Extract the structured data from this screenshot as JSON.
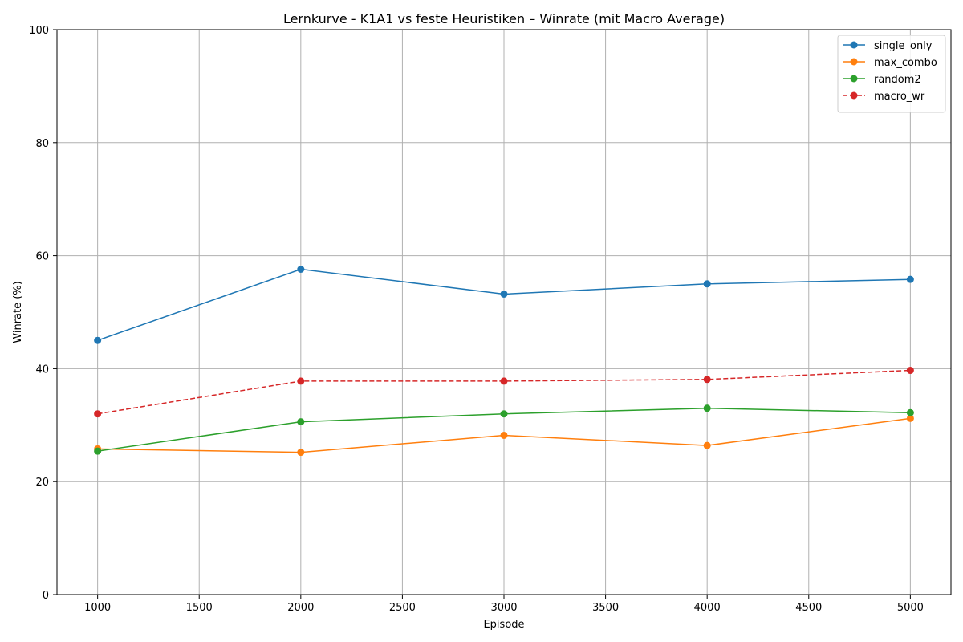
{
  "chart_data": {
    "type": "line",
    "title": "Lernkurve - K1A1 vs feste Heuristiken – Winrate (mit Macro Average)",
    "xlabel": "Episode",
    "ylabel": "Winrate (%)",
    "x": [
      1000,
      2000,
      3000,
      4000,
      5000
    ],
    "xlim": [
      800,
      5200
    ],
    "ylim": [
      0,
      100
    ],
    "xticks": [
      1000,
      1500,
      2000,
      2500,
      3000,
      3500,
      4000,
      4500,
      5000
    ],
    "yticks": [
      0,
      20,
      40,
      60,
      80,
      100
    ],
    "grid": true,
    "legend_position": "top-right",
    "series": [
      {
        "name": "single_only",
        "values": [
          45.0,
          57.6,
          53.2,
          55.0,
          55.8
        ],
        "color": "#1f77b4",
        "style": "solid",
        "marker": "circle"
      },
      {
        "name": "max_combo",
        "values": [
          25.8,
          25.2,
          28.2,
          26.4,
          31.2
        ],
        "color": "#ff7f0e",
        "style": "solid",
        "marker": "circle"
      },
      {
        "name": "random2",
        "values": [
          25.4,
          30.6,
          32.0,
          33.0,
          32.2
        ],
        "color": "#2ca02c",
        "style": "solid",
        "marker": "circle"
      },
      {
        "name": "macro_wr",
        "values": [
          32.0,
          37.8,
          37.8,
          38.1,
          39.7
        ],
        "color": "#d62728",
        "style": "dashed",
        "marker": "circle"
      }
    ]
  }
}
